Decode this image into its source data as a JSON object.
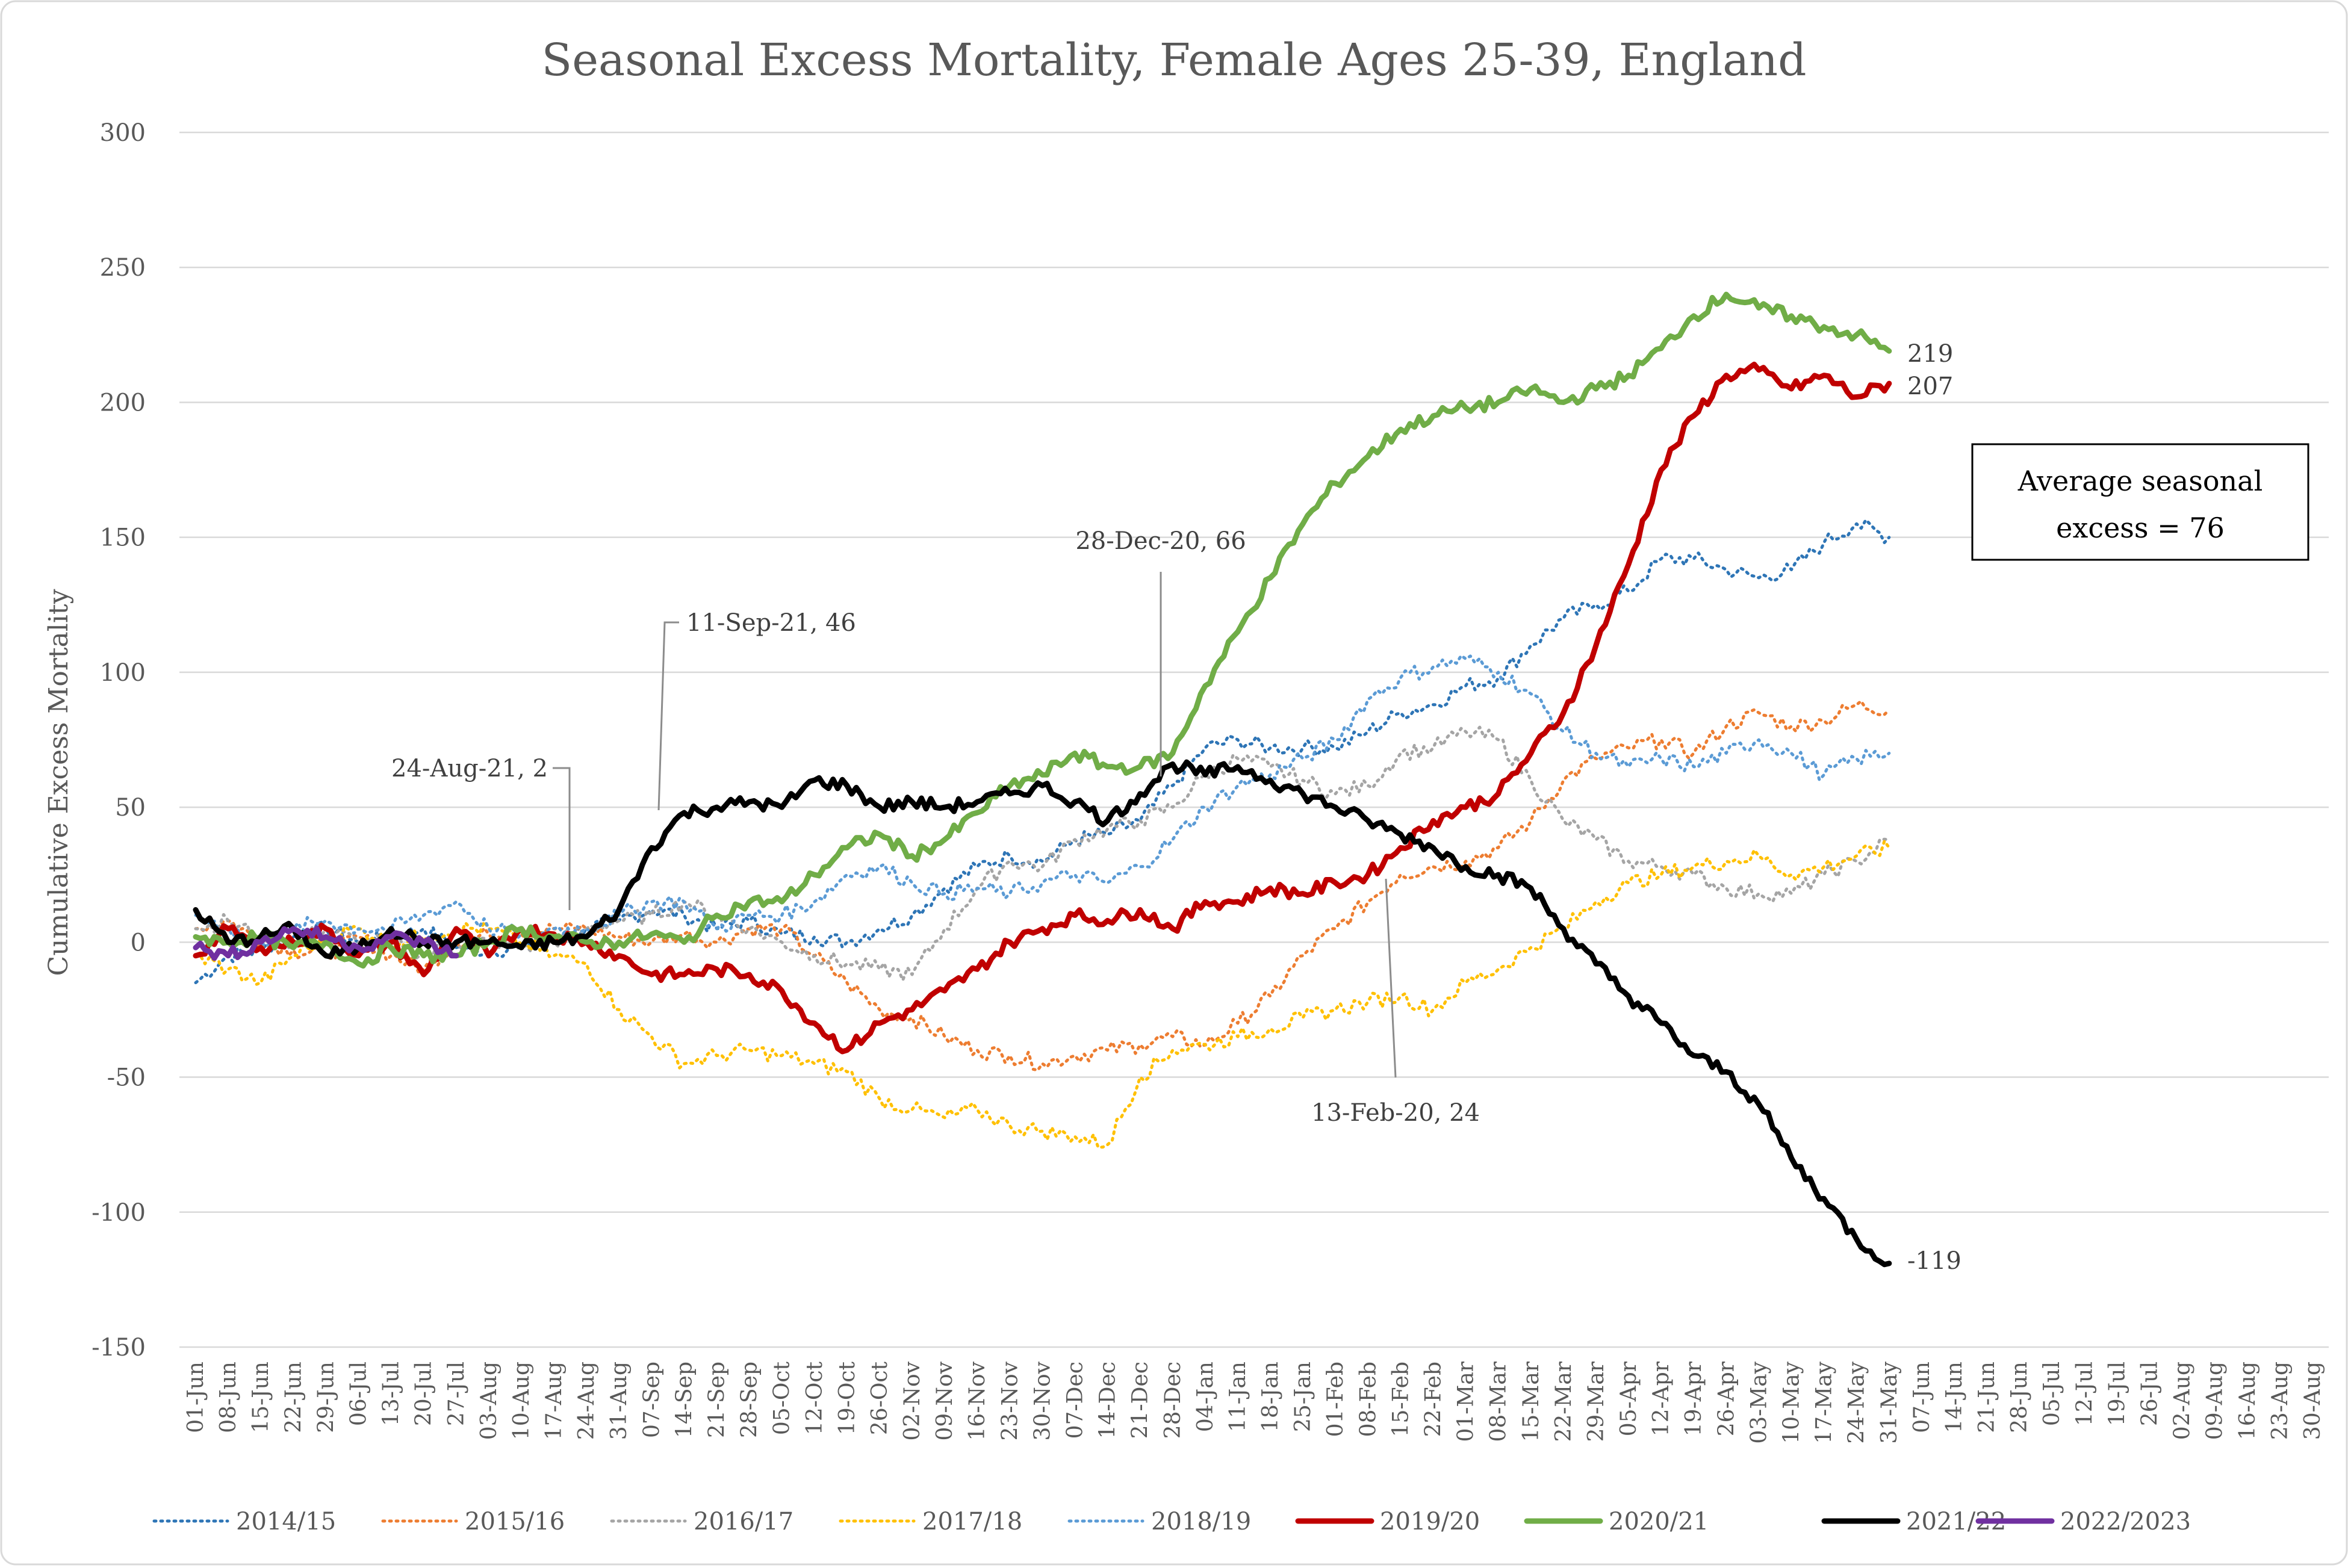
{
  "chart_data": {
    "type": "line",
    "title": "Seasonal Excess Mortality, Female Ages 25-39, England",
    "ylabel": "Cumulative Excess Mortality",
    "xlabel": "",
    "ylim": [
      -150,
      300
    ],
    "yticks": [
      "300",
      "250",
      "200",
      "150",
      "100",
      "50",
      "0",
      "-50",
      "-100",
      "-150"
    ],
    "ytick_values": [
      300,
      250,
      200,
      150,
      100,
      50,
      0,
      -50,
      -100,
      -150
    ],
    "xticks": [
      "01-Jun",
      "08-Jun",
      "15-Jun",
      "22-Jun",
      "29-Jun",
      "06-Jul",
      "13-Jul",
      "20-Jul",
      "27-Jul",
      "03-Aug",
      "10-Aug",
      "17-Aug",
      "24-Aug",
      "31-Aug",
      "07-Sep",
      "14-Sep",
      "21-Sep",
      "28-Sep",
      "05-Oct",
      "12-Oct",
      "19-Oct",
      "26-Oct",
      "02-Nov",
      "09-Nov",
      "16-Nov",
      "23-Nov",
      "30-Nov",
      "07-Dec",
      "14-Dec",
      "21-Dec",
      "28-Dec",
      "04-Jan",
      "11-Jan",
      "18-Jan",
      "25-Jan",
      "01-Feb",
      "08-Feb",
      "15-Feb",
      "22-Feb",
      "01-Mar",
      "08-Mar",
      "15-Mar",
      "22-Mar",
      "29-Mar",
      "05-Apr",
      "12-Apr",
      "19-Apr",
      "26-Apr",
      "03-May",
      "10-May",
      "17-May",
      "24-May",
      "31-May",
      "07-Jun",
      "14-Jun",
      "21-Jun",
      "28-Jun",
      "05-Jul",
      "12-Jul",
      "19-Jul",
      "26-Jul",
      "02-Aug",
      "09-Aug",
      "16-Aug",
      "23-Aug",
      "30-Aug"
    ],
    "x_unit": "week index (0 = 01-Jun)",
    "grid": true,
    "legend_position": "bottom",
    "series": [
      {
        "name": "2014/15",
        "color": "#2e75b6",
        "style": "dotted",
        "x": [
          0,
          1,
          2,
          3,
          4,
          5,
          6,
          7,
          8,
          9,
          10,
          11,
          12,
          13,
          14,
          15,
          16,
          17,
          18,
          19,
          20,
          21,
          22,
          23,
          24,
          25,
          26,
          27,
          28,
          29,
          30,
          31,
          32,
          33,
          34,
          35,
          36,
          37,
          38,
          39,
          40,
          41,
          42,
          43,
          44,
          45,
          46,
          47,
          48,
          49,
          50,
          51,
          52
        ],
        "values": [
          -15,
          -5,
          -3,
          2,
          5,
          0,
          2,
          5,
          -2,
          -3,
          -2,
          2,
          5,
          8,
          12,
          10,
          5,
          8,
          3,
          2,
          0,
          5,
          10,
          20,
          28,
          32,
          30,
          38,
          40,
          45,
          58,
          72,
          75,
          72,
          72,
          72,
          78,
          85,
          88,
          95,
          98,
          110,
          120,
          125,
          130,
          142,
          142,
          138,
          135,
          138,
          148,
          155,
          150
        ]
      },
      {
        "name": "2015/16",
        "color": "#ed7d31",
        "style": "dotted",
        "x": [
          0,
          1,
          2,
          3,
          4,
          5,
          6,
          7,
          8,
          9,
          10,
          11,
          12,
          13,
          14,
          15,
          16,
          17,
          18,
          19,
          20,
          21,
          22,
          23,
          24,
          25,
          26,
          27,
          28,
          29,
          30,
          31,
          32,
          33,
          34,
          35,
          36,
          37,
          38,
          39,
          40,
          41,
          42,
          43,
          44,
          45,
          46,
          47,
          48,
          49,
          50,
          51,
          52
        ],
        "values": [
          5,
          8,
          0,
          -3,
          -5,
          2,
          -5,
          -10,
          0,
          3,
          3,
          5,
          5,
          2,
          0,
          3,
          0,
          5,
          5,
          -5,
          -15,
          -25,
          -28,
          -35,
          -40,
          -42,
          -45,
          -42,
          -40,
          -38,
          -35,
          -38,
          -30,
          -20,
          -5,
          5,
          15,
          25,
          28,
          30,
          35,
          45,
          60,
          68,
          72,
          75,
          70,
          80,
          85,
          80,
          82,
          88,
          86
        ]
      },
      {
        "name": "2016/17",
        "color": "#a5a5a5",
        "style": "dotted",
        "x": [
          0,
          1,
          2,
          3,
          4,
          5,
          6,
          7,
          8,
          9,
          10,
          11,
          12,
          13,
          14,
          15,
          16,
          17,
          18,
          19,
          20,
          21,
          22,
          23,
          24,
          25,
          26,
          27,
          28,
          29,
          30,
          31,
          32,
          33,
          34,
          35,
          36,
          37,
          38,
          39,
          40,
          41,
          42,
          43,
          44,
          45,
          46,
          47,
          48,
          49,
          50,
          51,
          52
        ],
        "values": [
          5,
          8,
          2,
          0,
          5,
          0,
          0,
          -5,
          0,
          0,
          -2,
          0,
          5,
          8,
          10,
          15,
          10,
          5,
          0,
          -5,
          -8,
          -10,
          -12,
          5,
          20,
          30,
          28,
          38,
          42,
          45,
          50,
          62,
          68,
          65,
          60,
          55,
          58,
          70,
          72,
          78,
          75,
          60,
          45,
          38,
          30,
          28,
          25,
          20,
          18,
          18,
          25,
          30,
          38
        ]
      },
      {
        "name": "2017/18",
        "color": "#ffc000",
        "style": "dotted",
        "x": [
          0,
          1,
          2,
          3,
          4,
          5,
          6,
          7,
          8,
          9,
          10,
          11,
          12,
          13,
          14,
          15,
          16,
          17,
          18,
          19,
          20,
          21,
          22,
          23,
          24,
          25,
          26,
          27,
          28,
          29,
          30,
          31,
          32,
          33,
          34,
          35,
          36,
          37,
          38,
          39,
          40,
          41,
          42,
          43,
          44,
          45,
          46,
          47,
          48,
          49,
          50,
          51,
          52
        ],
        "values": [
          -5,
          -10,
          -15,
          -5,
          2,
          5,
          0,
          2,
          5,
          5,
          0,
          -5,
          -8,
          -25,
          -35,
          -45,
          -42,
          -40,
          -42,
          -45,
          -48,
          -58,
          -62,
          -65,
          -62,
          -68,
          -70,
          -72,
          -75,
          -50,
          -40,
          -38,
          -35,
          -32,
          -28,
          -25,
          -22,
          -20,
          -25,
          -15,
          -10,
          -2,
          5,
          15,
          22,
          25,
          28,
          30,
          32,
          25,
          28,
          32,
          35
        ]
      },
      {
        "name": "2018/19",
        "color": "#5b9bd5",
        "style": "dotted",
        "x": [
          0,
          1,
          2,
          3,
          4,
          5,
          6,
          7,
          8,
          9,
          10,
          11,
          12,
          13,
          14,
          15,
          16,
          17,
          18,
          19,
          20,
          21,
          22,
          23,
          24,
          25,
          26,
          27,
          28,
          29,
          30,
          31,
          32,
          33,
          34,
          35,
          36,
          37,
          38,
          39,
          40,
          41,
          42,
          43,
          44,
          45,
          46,
          47,
          48,
          49,
          50,
          51,
          52
        ],
        "values": [
          10,
          5,
          0,
          5,
          8,
          5,
          5,
          10,
          15,
          5,
          3,
          5,
          5,
          10,
          15,
          15,
          5,
          10,
          10,
          15,
          25,
          28,
          22,
          18,
          20,
          18,
          22,
          25,
          22,
          28,
          38,
          50,
          58,
          62,
          68,
          75,
          90,
          98,
          102,
          105,
          100,
          92,
          78,
          70,
          65,
          68,
          65,
          70,
          75,
          70,
          62,
          68,
          70
        ]
      },
      {
        "name": "2019/20",
        "color": "#c00000",
        "style": "solid",
        "x": [
          0,
          1,
          2,
          3,
          4,
          5,
          6,
          7,
          8,
          9,
          10,
          11,
          12,
          13,
          14,
          15,
          16,
          17,
          18,
          19,
          20,
          21,
          22,
          23,
          24,
          25,
          26,
          27,
          28,
          29,
          30,
          31,
          32,
          33,
          34,
          35,
          36,
          37,
          38,
          39,
          40,
          41,
          42,
          43,
          44,
          45,
          46,
          47,
          48,
          49,
          50,
          51,
          52
        ],
        "values": [
          -5,
          5,
          -2,
          0,
          5,
          -5,
          0,
          -12,
          5,
          -5,
          5,
          3,
          0,
          -5,
          -12,
          -12,
          -10,
          -12,
          -18,
          -30,
          -40,
          -30,
          -25,
          -18,
          -10,
          0,
          5,
          10,
          8,
          12,
          5,
          15,
          15,
          20,
          18,
          22,
          25,
          35,
          45,
          50,
          55,
          70,
          85,
          110,
          140,
          175,
          195,
          210,
          212,
          205,
          210,
          202,
          207
        ]
      },
      {
        "name": "2020/21",
        "color": "#70ad47",
        "style": "solid",
        "x": [
          0,
          1,
          2,
          3,
          4,
          5,
          6,
          7,
          8,
          9,
          10,
          11,
          12,
          13,
          14,
          15,
          16,
          17,
          18,
          19,
          20,
          21,
          22,
          23,
          24,
          25,
          26,
          27,
          28,
          29,
          30,
          31,
          32,
          33,
          34,
          35,
          36,
          37,
          38,
          39,
          40,
          41,
          42,
          43,
          44,
          45,
          46,
          47,
          48,
          49,
          50,
          51,
          52
        ],
        "values": [
          2,
          0,
          2,
          -2,
          0,
          -8,
          -2,
          -5,
          -5,
          0,
          5,
          2,
          0,
          0,
          3,
          0,
          10,
          15,
          15,
          25,
          35,
          40,
          32,
          38,
          48,
          58,
          62,
          70,
          65,
          65,
          70,
          95,
          115,
          135,
          155,
          170,
          180,
          190,
          195,
          198,
          200,
          205,
          200,
          205,
          210,
          220,
          232,
          240,
          235,
          232,
          228,
          225,
          219
        ]
      },
      {
        "name": "2021/22",
        "color": "#000000",
        "style": "solid",
        "x": [
          0,
          1,
          2,
          3,
          4,
          5,
          6,
          7,
          8,
          9,
          10,
          11,
          12,
          13,
          14,
          15,
          16,
          17,
          18,
          19,
          20,
          21,
          22,
          23,
          24,
          25,
          26,
          27,
          28,
          29,
          30,
          31,
          32,
          33,
          34,
          35,
          36,
          37,
          38,
          39,
          40,
          41,
          42,
          43,
          44,
          45,
          46,
          47,
          48,
          49,
          50,
          51,
          52
        ],
        "values": [
          12,
          0,
          2,
          5,
          -5,
          -2,
          5,
          0,
          0,
          0,
          -2,
          0,
          2,
          12,
          35,
          48,
          50,
          52,
          50,
          60,
          58,
          50,
          52,
          50,
          52,
          55,
          58,
          52,
          45,
          55,
          66,
          62,
          65,
          60,
          55,
          50,
          45,
          40,
          35,
          28,
          25,
          20,
          5,
          -8,
          -20,
          -30,
          -42,
          -48,
          -60,
          -80,
          -95,
          -110,
          -119
        ]
      },
      {
        "name": "2022/2023",
        "color": "#7030a0",
        "style": "solid",
        "x": [
          0,
          1,
          2,
          3,
          4,
          5,
          6,
          7,
          8
        ],
        "values": [
          -2,
          -5,
          0,
          5,
          2,
          -2,
          2,
          0,
          -5
        ]
      }
    ],
    "annotations": [
      {
        "text": "24-Aug-21, 2"
      },
      {
        "text": "11-Sep-21, 46"
      },
      {
        "text": "28-Dec-20, 66"
      },
      {
        "text": "13-Feb-20, 24"
      }
    ],
    "end_labels": [
      "219",
      "207",
      "-119"
    ],
    "textbox": {
      "line1": "Average seasonal",
      "line2": "excess = 76"
    }
  }
}
